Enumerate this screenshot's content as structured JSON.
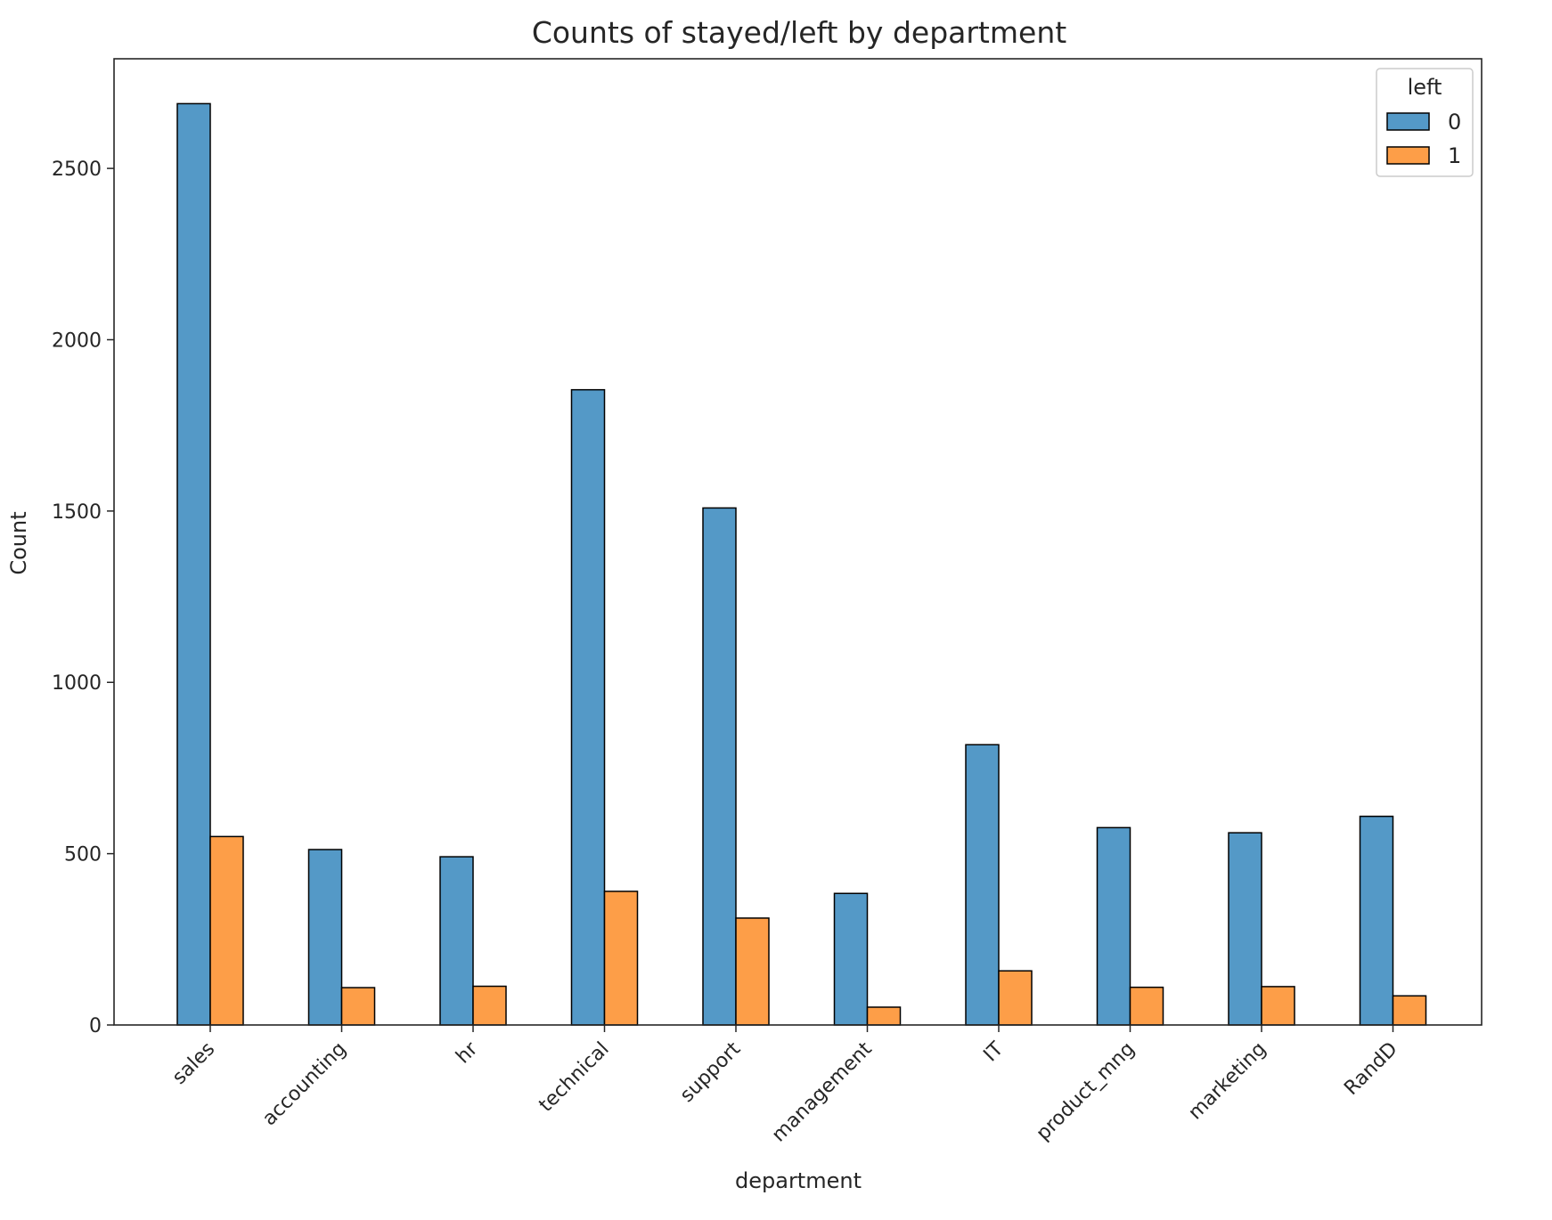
{
  "chart_data": {
    "type": "bar",
    "title": "Counts of stayed/left by department",
    "xlabel": "department",
    "ylabel": "Count",
    "ylim": [
      0,
      2820
    ],
    "yticks": [
      0,
      500,
      1000,
      1500,
      2000,
      2500
    ],
    "grid": false,
    "legend_placement": "top-right",
    "legend_title": "left",
    "categories": [
      "sales",
      "accounting",
      "hr",
      "technical",
      "support",
      "management",
      "IT",
      "product_mng",
      "marketing",
      "RandD"
    ],
    "series": [
      {
        "name": "0",
        "color": "#5499c7",
        "values": [
          2689,
          512,
          491,
          1854,
          1509,
          384,
          818,
          576,
          561,
          609
        ]
      },
      {
        "name": "1",
        "color": "#fd9e48",
        "values": [
          550,
          109,
          113,
          390,
          312,
          52,
          158,
          110,
          112,
          85
        ]
      }
    ]
  }
}
